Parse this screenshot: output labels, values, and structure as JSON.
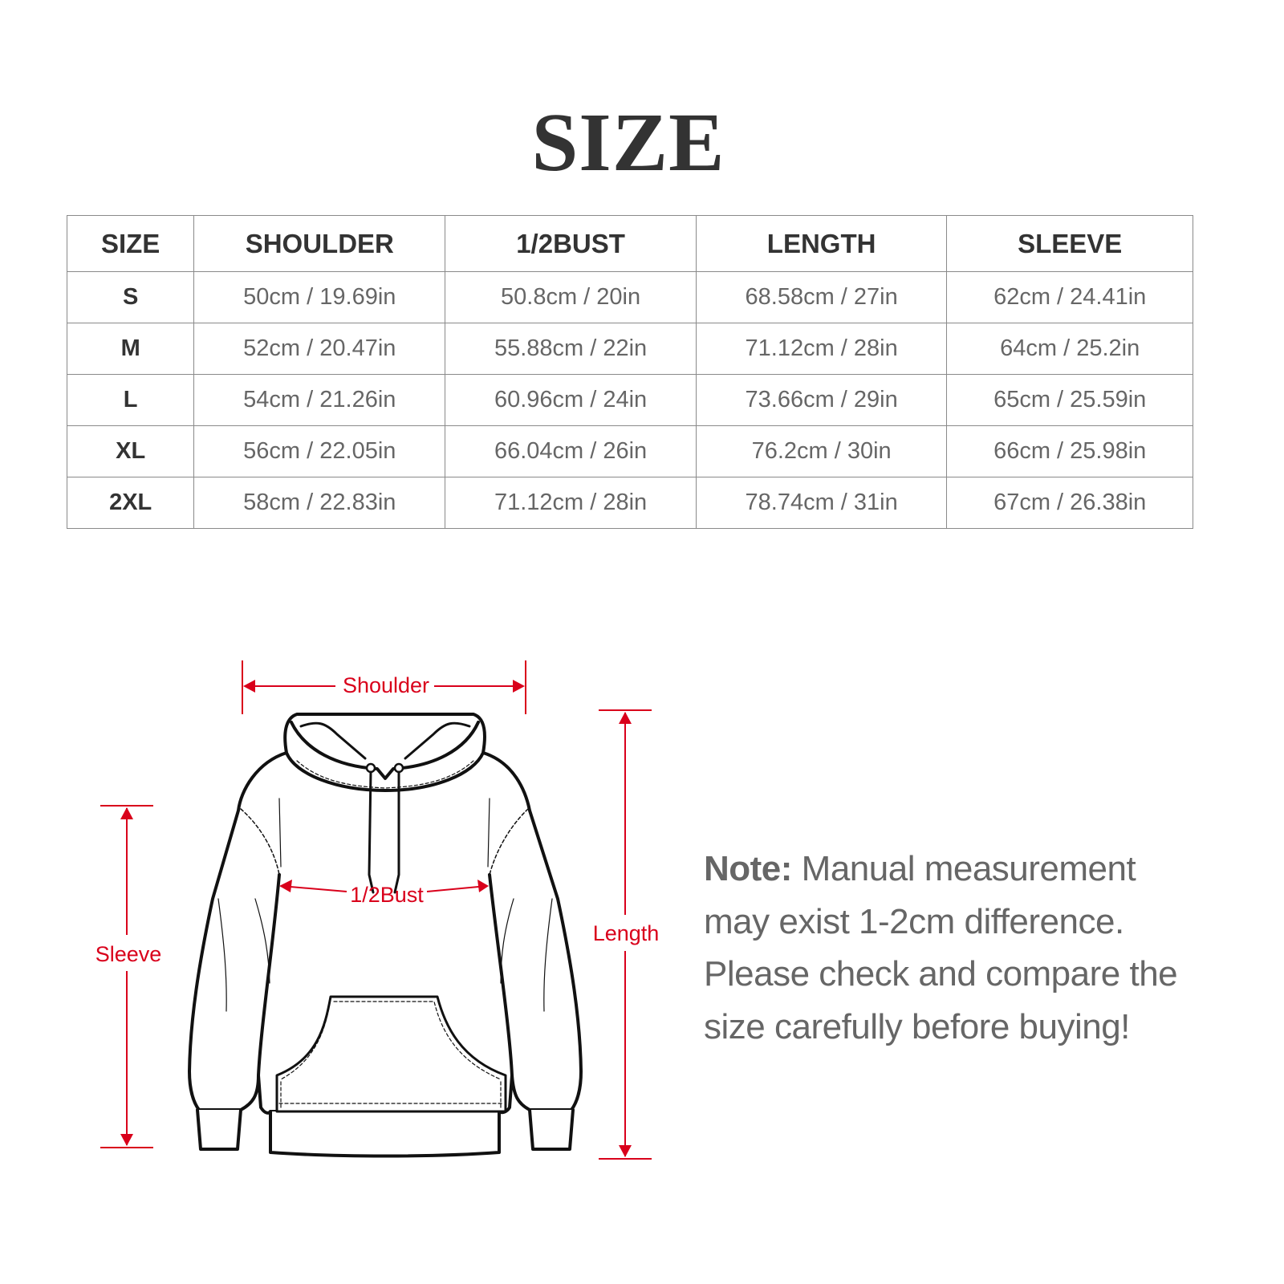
{
  "title": "SIZE",
  "table": {
    "headers": [
      "SIZE",
      "SHOULDER",
      "1/2BUST",
      "LENGTH",
      "SLEEVE"
    ],
    "rows": [
      [
        "S",
        "50cm / 19.69in",
        "50.8cm / 20in",
        "68.58cm / 27in",
        "62cm / 24.41in"
      ],
      [
        "M",
        "52cm / 20.47in",
        "55.88cm / 22in",
        "71.12cm / 28in",
        "64cm / 25.2in"
      ],
      [
        "L",
        "54cm / 21.26in",
        "60.96cm / 24in",
        "73.66cm / 29in",
        "65cm / 25.59in"
      ],
      [
        "XL",
        "56cm / 22.05in",
        "66.04cm / 26in",
        "76.2cm / 30in",
        "66cm / 25.98in"
      ],
      [
        "2XL",
        "58cm / 22.83in",
        "71.12cm / 28in",
        "78.74cm / 31in",
        "67cm / 26.38in"
      ]
    ]
  },
  "diagram": {
    "labels": {
      "shoulder": "Shoulder",
      "bust": "1/2Bust",
      "length": "Length",
      "sleeve": "Sleeve"
    },
    "accent_color": "#d9001b"
  },
  "note": {
    "label": "Note:",
    "text": " Manual measurement may exist 1-2cm difference. Please check and compare the size carefully before buying!"
  }
}
